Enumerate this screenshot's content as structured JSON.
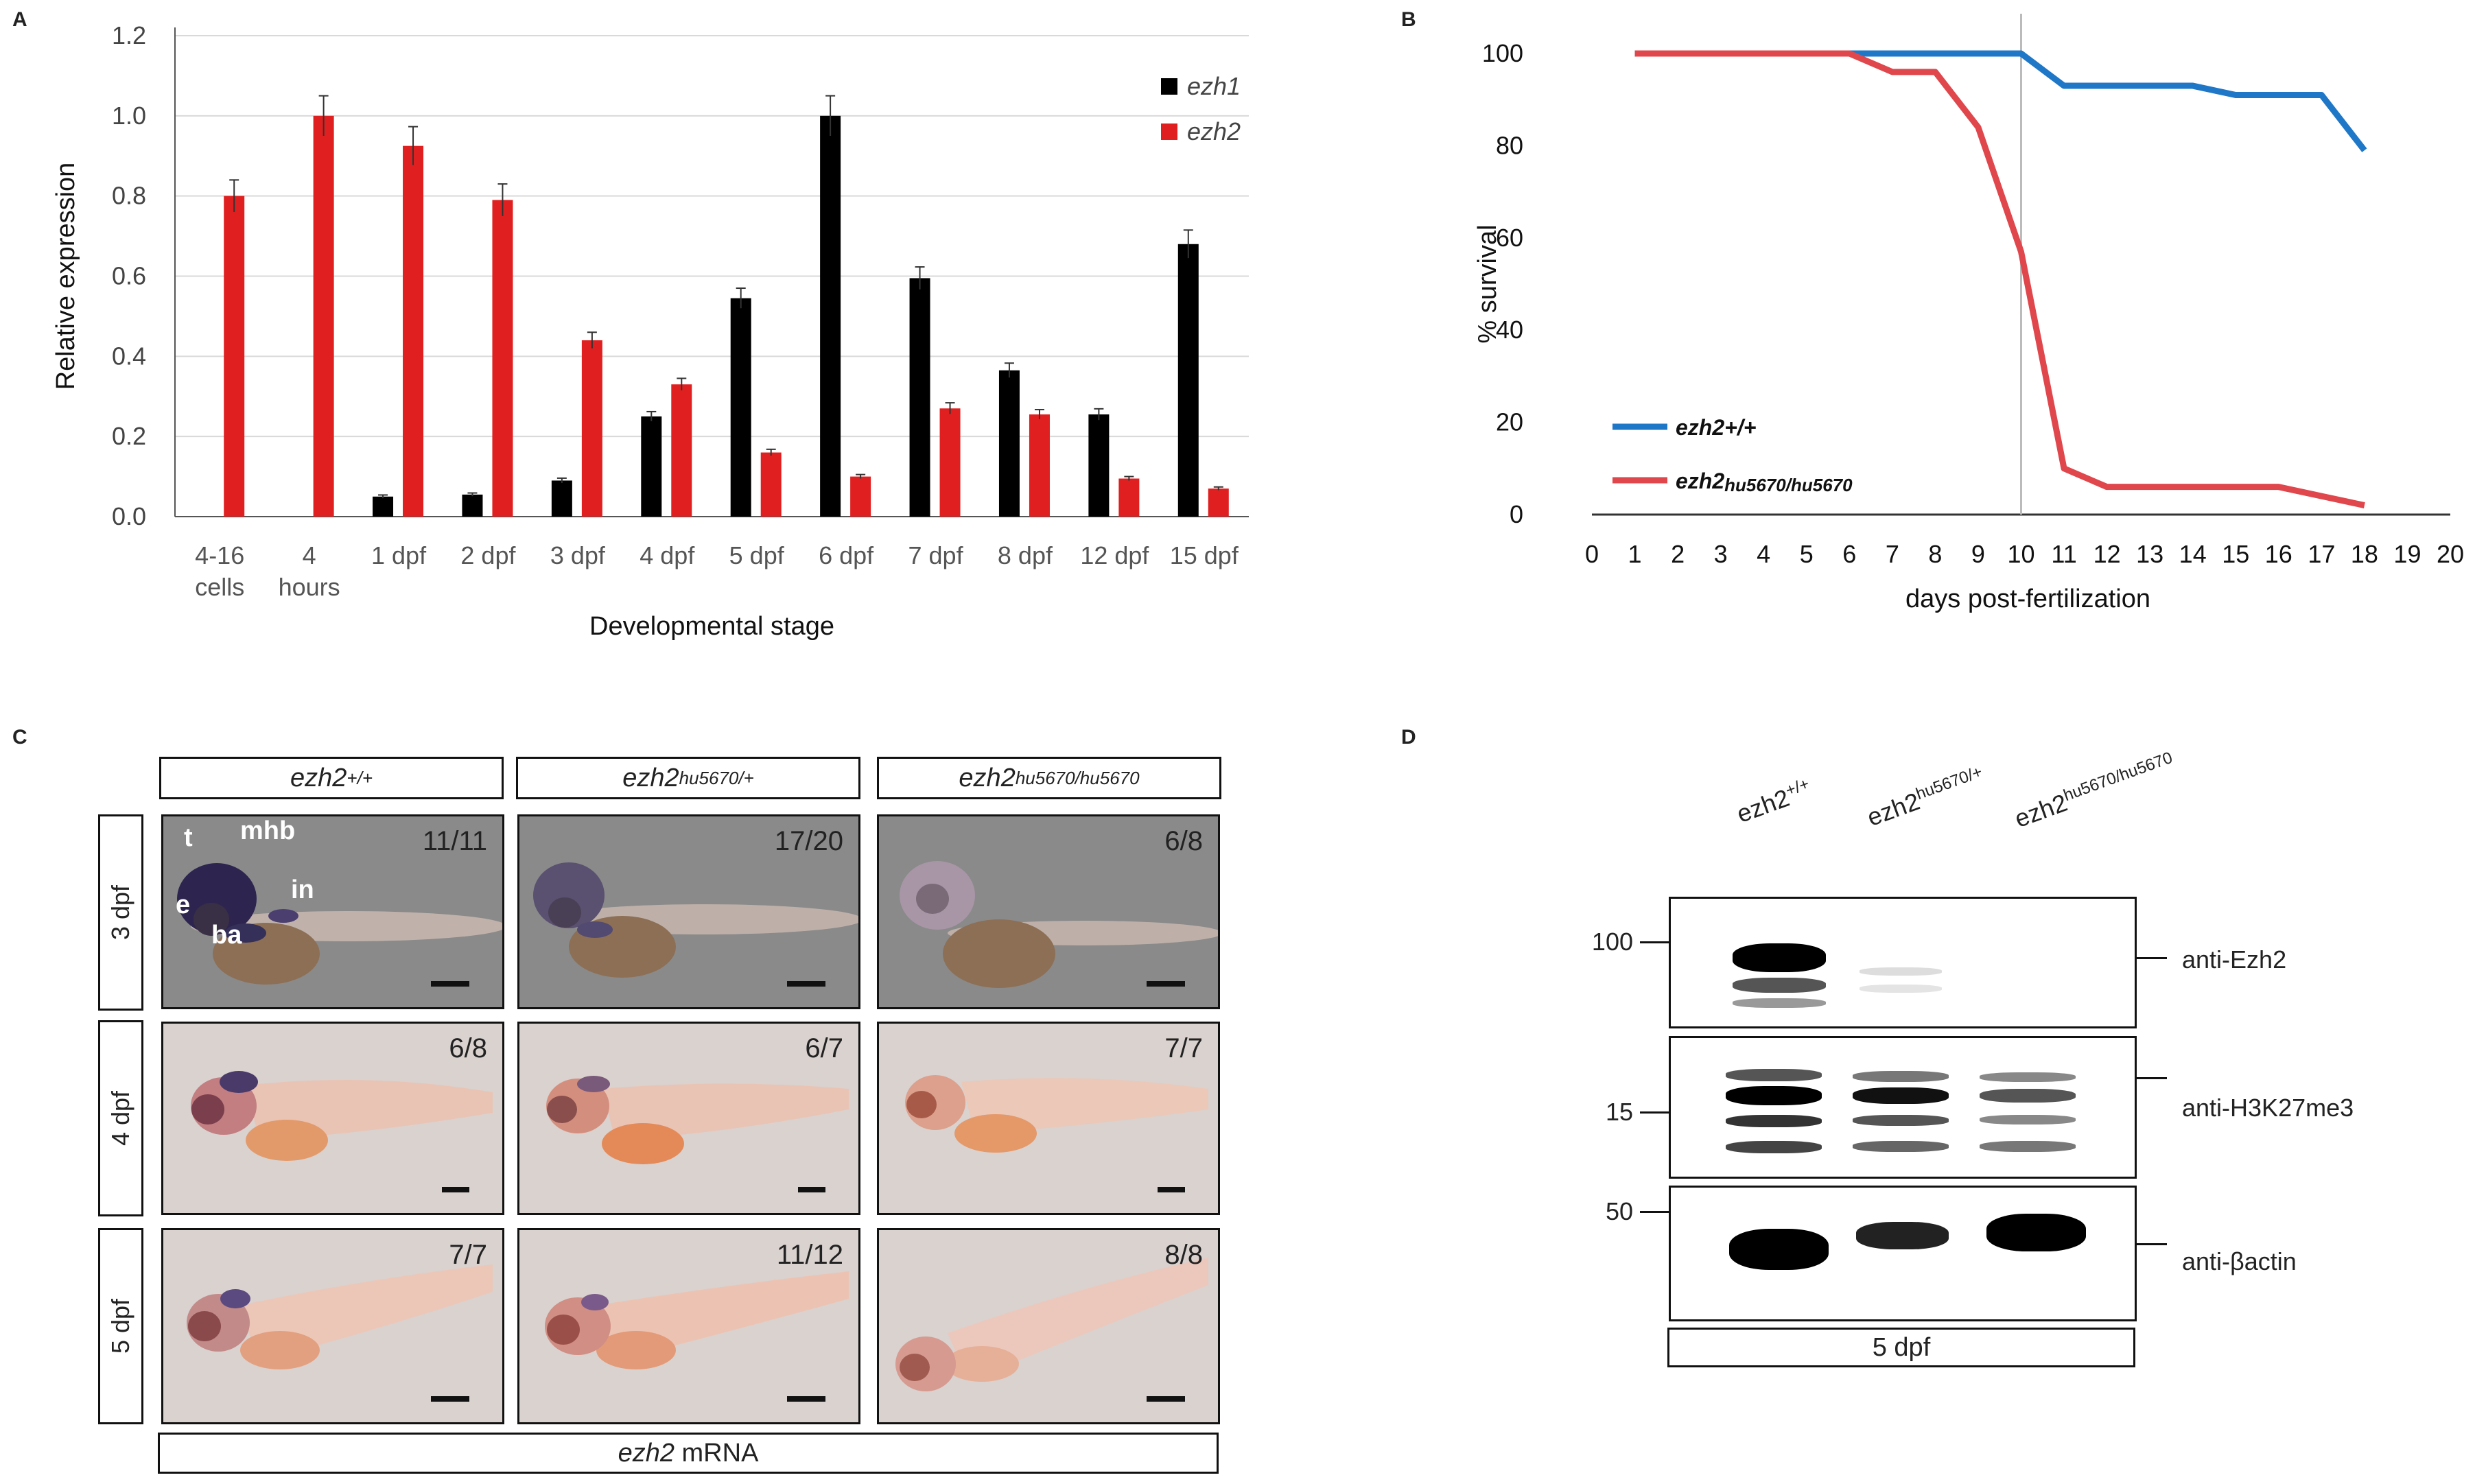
{
  "panels": {
    "a": "A",
    "b": "B",
    "c": "C",
    "d": "D"
  },
  "chart_data": [
    {
      "type": "bar",
      "title": "",
      "xlabel": "Developmental stage",
      "ylabel": "Relative expression",
      "ylim": [
        0,
        1.2
      ],
      "yticks": [
        "0.0",
        "0.2",
        "0.4",
        "0.6",
        "0.8",
        "1.0",
        "1.2"
      ],
      "categories": [
        [
          "4-16",
          "cells"
        ],
        [
          "4",
          "hours"
        ],
        [
          "1 dpf"
        ],
        [
          "2 dpf"
        ],
        [
          "3 dpf"
        ],
        [
          "4 dpf"
        ],
        [
          "5 dpf"
        ],
        [
          "6 dpf"
        ],
        [
          "7 dpf"
        ],
        [
          "8 dpf"
        ],
        [
          "12 dpf"
        ],
        [
          "15 dpf"
        ]
      ],
      "series": [
        {
          "name": "ezh1",
          "color": "#000000",
          "values": [
            0.0,
            0.0,
            0.05,
            0.055,
            0.09,
            0.25,
            0.545,
            1.0,
            0.595,
            0.365,
            0.255,
            0.68
          ],
          "errors": [
            0,
            0,
            0.004,
            0.004,
            0.006,
            0.012,
            0.025,
            0.05,
            0.028,
            0.018,
            0.014,
            0.035
          ]
        },
        {
          "name": "ezh2",
          "color": "#e02020",
          "values": [
            0.8,
            1.0,
            0.925,
            0.79,
            0.44,
            0.33,
            0.16,
            0.1,
            0.27,
            0.255,
            0.095,
            0.07
          ],
          "errors": [
            0.04,
            0.05,
            0.048,
            0.04,
            0.02,
            0.015,
            0.008,
            0.005,
            0.014,
            0.012,
            0.005,
            0.004
          ]
        }
      ],
      "legend_position": "top-right"
    },
    {
      "type": "line",
      "title": "",
      "xlabel": "days post-fertilization",
      "ylabel": "% survival",
      "xlim": [
        0,
        20
      ],
      "ylim": [
        0,
        100
      ],
      "xticks": [
        "0",
        "1",
        "2",
        "3",
        "4",
        "5",
        "6",
        "7",
        "8",
        "9",
        "10",
        "11",
        "12",
        "13",
        "14",
        "15",
        "16",
        "17",
        "18",
        "19",
        "20"
      ],
      "yticks": [
        "0",
        "20",
        "40",
        "60",
        "80",
        "100"
      ],
      "vline_x": 10,
      "series": [
        {
          "name": "ezh2+/+",
          "color": "#1f77c8",
          "x": [
            1,
            2,
            3,
            4,
            5,
            6,
            7,
            8,
            9,
            10,
            11,
            12,
            13,
            14,
            15,
            16,
            17,
            18
          ],
          "y": [
            100,
            100,
            100,
            100,
            100,
            100,
            100,
            100,
            100,
            100,
            93,
            93,
            93,
            93,
            91,
            91,
            91,
            79
          ]
        },
        {
          "name": "ezh2hu5670/hu5670",
          "name_main": "ezh2",
          "name_sub": "hu5670/hu5670",
          "color": "#e0474c",
          "x": [
            1,
            2,
            3,
            4,
            5,
            6,
            7,
            8,
            9,
            10,
            11,
            12,
            13,
            14,
            15,
            16,
            17,
            18
          ],
          "y": [
            100,
            100,
            100,
            100,
            100,
            100,
            96,
            96,
            84,
            57,
            10,
            6,
            6,
            6,
            6,
            6,
            4,
            2
          ]
        }
      ],
      "legend_position": "bottom-left"
    }
  ],
  "panel_c": {
    "columns": [
      {
        "gene": "ezh2",
        "sup": "+/+"
      },
      {
        "gene": "ezh2",
        "sup": "hu5670/+"
      },
      {
        "gene": "ezh2",
        "sup": "hu5670/hu5670"
      }
    ],
    "rows": [
      "3 dpf",
      "4 dpf",
      "5 dpf"
    ],
    "counts": [
      [
        "11/11",
        "17/20",
        "6/8"
      ],
      [
        "6/8",
        "6/7",
        "7/7"
      ],
      [
        "7/7",
        "11/12",
        "8/8"
      ]
    ],
    "annotations": [
      "t",
      "mhb",
      "e",
      "in",
      "ba"
    ],
    "footer_gene": "ezh2",
    "footer_rest": " mRNA"
  },
  "panel_d": {
    "lanes": [
      {
        "gene": "ezh2",
        "sup": "+/+"
      },
      {
        "gene": "ezh2",
        "sup": "hu5670/+"
      },
      {
        "gene": "ezh2",
        "sup": "hu5670/hu5670"
      }
    ],
    "blots": [
      {
        "mw": "100",
        "antibody": "anti-Ezh2"
      },
      {
        "mw": "15",
        "antibody": "anti-H3K27me3"
      },
      {
        "mw": "50",
        "antibody": "anti-βactin"
      }
    ],
    "footer": "5 dpf"
  }
}
